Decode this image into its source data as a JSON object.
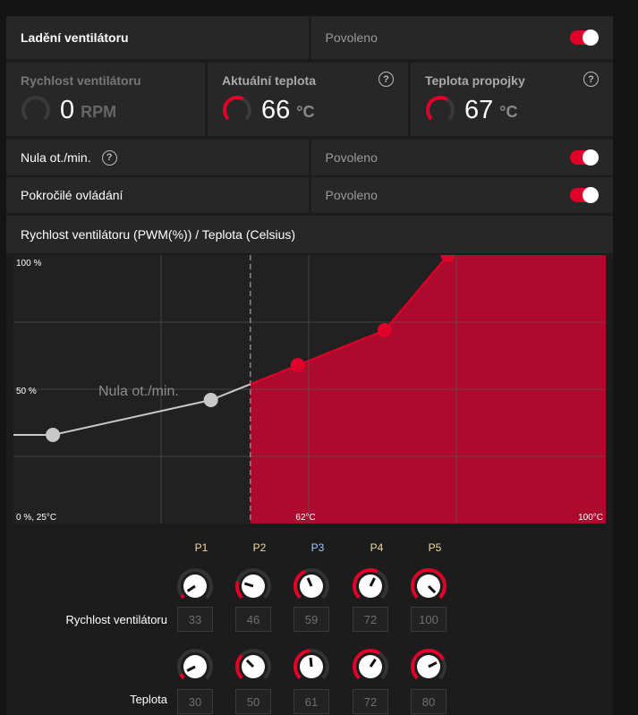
{
  "fan_tuning": {
    "label": "Ladění ventilátoru",
    "value": "Povoleno",
    "enabled": true
  },
  "stats": [
    {
      "label": "Rychlost ventilátoru",
      "value": "0",
      "unit": "RPM",
      "help": false
    },
    {
      "label": "Aktuální teplota",
      "value": "66",
      "unit": "°C",
      "help": true
    },
    {
      "label": "Teplota propojky",
      "value": "67",
      "unit": "°C",
      "help": true
    }
  ],
  "zero_rpm": {
    "label": "Nula ot./min.",
    "value": "Povoleno",
    "enabled": true,
    "help": "?"
  },
  "advanced": {
    "label": "Pokročilé ovládání",
    "value": "Povoleno",
    "enabled": true
  },
  "chart_title": "Rychlost ventilátoru (PWM(%)) / Teplota (Celsius)",
  "colors": {
    "accent": "#e0002a",
    "fill": "#ad0a2d",
    "inactive": "#c8c8c8"
  },
  "chart_data": {
    "type": "area",
    "title": "Rychlost ventilátoru (PWM(%)) / Teplota (Celsius)",
    "xlim": [
      25,
      100
    ],
    "ylim": [
      0,
      100
    ],
    "tick_labels": {
      "y_top": "100 %",
      "y_mid": "50 %",
      "origin": "0 %, 25°C",
      "x_mid": "62°C",
      "x_max": "100°C"
    },
    "zero_rpm_label": "Nula ot./min.",
    "zero_rpm_threshold": 55,
    "points": [
      {
        "name": "P1",
        "temp": 30,
        "speed": 33
      },
      {
        "name": "P2",
        "temp": 50,
        "speed": 46
      },
      {
        "name": "P3",
        "temp": 61,
        "speed": 59
      },
      {
        "name": "P4",
        "temp": 72,
        "speed": 72
      },
      {
        "name": "P5",
        "temp": 80,
        "speed": 100
      }
    ]
  },
  "points_editor": {
    "headers": [
      "P1",
      "P2",
      "P3",
      "P4",
      "P5"
    ],
    "speed_label": "Rychlost ventilátoru",
    "temp_label": "Teplota",
    "speed": [
      "33",
      "46",
      "59",
      "72",
      "100"
    ],
    "temp": [
      "30",
      "50",
      "61",
      "72",
      "80"
    ]
  }
}
